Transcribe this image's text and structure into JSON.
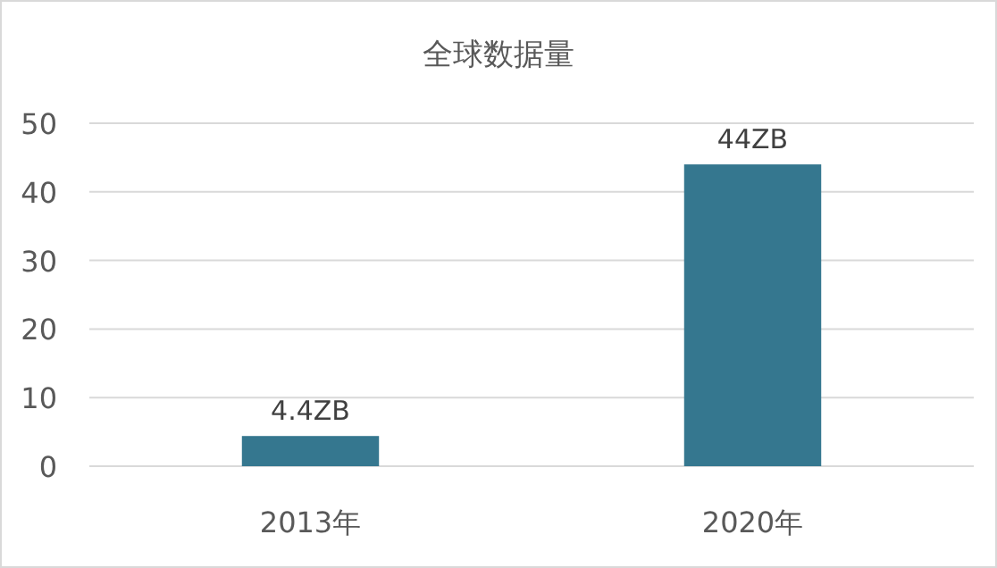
{
  "chart_data": {
    "type": "bar",
    "title": "全球数据量",
    "categories": [
      "2013年",
      "2020年"
    ],
    "values": [
      4.4,
      44
    ],
    "value_labels": [
      "4.4ZB",
      "44ZB"
    ],
    "color": "#35778f",
    "ylim": [
      0,
      50
    ],
    "yticks": [
      0,
      10,
      20,
      30,
      40,
      50
    ],
    "grid": "y"
  }
}
